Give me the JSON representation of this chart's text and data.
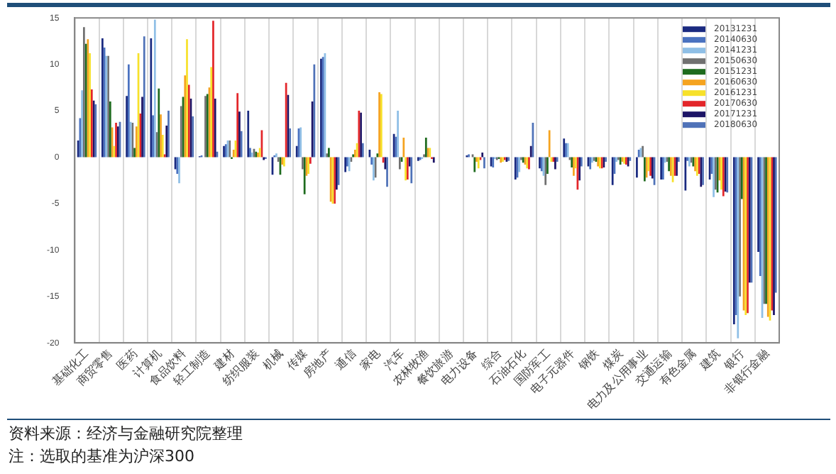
{
  "chart_data": {
    "type": "bar",
    "categories": [
      "基础化工",
      "商贸零售",
      "医药",
      "计算机",
      "食品饮料",
      "轻工制造",
      "建材",
      "纺织服装",
      "机械",
      "传媒",
      "房地产",
      "通信",
      "家电",
      "汽车",
      "农林牧渔",
      "餐饮旅游",
      "电力设备",
      "综合",
      "石油石化",
      "国防军工",
      "电子元器件",
      "钢铁",
      "煤炭",
      "电力及公用事业",
      "交通运输",
      "有色金属",
      "建筑",
      "银行",
      "非银行金融"
    ],
    "series": [
      {
        "name": "20131231",
        "color": "#1a2a80",
        "values": [
          1.8,
          12.8,
          6.6,
          12.8,
          -1.3,
          0.1,
          1.2,
          5,
          -1.9,
          1.2,
          10.6,
          -1.6,
          0.8,
          2.5,
          -0.4,
          0,
          0.2,
          -1,
          -2.4,
          -1.2,
          2,
          -1,
          -3,
          -2.2,
          -2.4,
          -3.6,
          -2.4,
          -18,
          -10.2
        ]
      },
      {
        "name": "20140630",
        "color": "#4a72c0",
        "values": [
          4.2,
          11.8,
          10,
          4.5,
          -1.8,
          0.2,
          1.4,
          1,
          0.2,
          3.1,
          10.8,
          -1,
          -0.8,
          2.2,
          -0.3,
          0,
          0.3,
          -1.1,
          -2.2,
          -1.5,
          1.5,
          -1.3,
          -1.8,
          0.8,
          -2.4,
          -0.4,
          -1.8,
          -17,
          -12.8
        ]
      },
      {
        "name": "20141231",
        "color": "#8fbfe6",
        "values": [
          7.2,
          10.9,
          3.8,
          14.8,
          -2.8,
          null,
          1.8,
          0.5,
          0.4,
          3.2,
          11.2,
          -1.5,
          -2.5,
          5,
          -0.2,
          0,
          null,
          -0.2,
          -1.6,
          -2,
          1.5,
          -0.6,
          -0.5,
          1,
          -0.6,
          -1,
          -4.3,
          -19.5,
          -17.3
        ]
      },
      {
        "name": "20150630",
        "color": "#707070",
        "values": [
          14,
          10.9,
          3.7,
          2.7,
          5.5,
          6.6,
          1.8,
          0.9,
          -0.5,
          -1.3,
          0.4,
          -0.5,
          -2.2,
          -1.3,
          0.3,
          0,
          0.3,
          -0.3,
          -0.3,
          -3,
          -0.3,
          -0.4,
          -0.3,
          1.2,
          -0.5,
          -0.6,
          -3.5,
          -15,
          -15.8
        ]
      },
      {
        "name": "20151231",
        "color": "#1e6b1e",
        "values": [
          12.2,
          6,
          1,
          7.4,
          6.5,
          6.8,
          -0.2,
          0.6,
          -1.9,
          -4,
          1,
          0.3,
          0.4,
          -0.5,
          2.1,
          0,
          -1.6,
          -0.2,
          -0.6,
          -1.8,
          -1.1,
          -0.5,
          -0.8,
          -2.6,
          -1.5,
          -1,
          -3.8,
          -4.5,
          -15.8
        ]
      },
      {
        "name": "20160630",
        "color": "#f5a31f",
        "values": [
          12.7,
          3.2,
          3.3,
          4.6,
          8.8,
          7.5,
          0.8,
          0.5,
          -0.8,
          -2,
          -4.8,
          0.8,
          7,
          2.1,
          1,
          0,
          -0.5,
          -0.6,
          -0.8,
          2.9,
          -2,
          -1,
          -0.5,
          -2.2,
          -2,
          -1.5,
          -2.5,
          -16.5,
          -17.2
        ]
      },
      {
        "name": "20161231",
        "color": "#f7e12a",
        "values": [
          11.2,
          1.2,
          11.2,
          2.4,
          12.7,
          9.7,
          1.8,
          1,
          -1,
          -1.8,
          -5,
          1.5,
          6.8,
          -2.5,
          1,
          0,
          -1.2,
          -0.5,
          -1.2,
          -0.5,
          -1.2,
          -1.2,
          -0.7,
          -1.5,
          -2.7,
          -2,
          -3.5,
          -17,
          -17.6
        ]
      },
      {
        "name": "20170630",
        "color": "#e3262a",
        "values": [
          7.3,
          3.7,
          4.7,
          0.3,
          7.8,
          14.7,
          6.9,
          2.9,
          8,
          -0.7,
          -5,
          5,
          -0.6,
          -2.4,
          -0.2,
          0,
          -0.3,
          -0.3,
          -1.3,
          -0.5,
          -3.5,
          -1.2,
          -0.8,
          -2,
          -2,
          -1.8,
          -4.2,
          -16.8,
          -16.5
        ]
      },
      {
        "name": "20171231",
        "color": "#1c1466",
        "values": [
          6.1,
          3.3,
          6.5,
          3.4,
          6.3,
          6.3,
          4.9,
          -0.3,
          6.7,
          6,
          -3.5,
          4.8,
          -1.3,
          -1,
          -0.6,
          0,
          0.5,
          -0.5,
          1.2,
          -1.3,
          -2.5,
          -1.1,
          -1,
          -2.3,
          -2,
          -3.2,
          -3.7,
          -13.5,
          -17
        ]
      },
      {
        "name": "20180630",
        "color": "#4f72b8",
        "values": [
          5.7,
          3.8,
          13,
          5,
          4.4,
          0.6,
          2.8,
          -0.2,
          3.1,
          10,
          -3,
          1.5,
          -3.2,
          -2.8,
          0,
          0,
          -1.2,
          -0.4,
          3.7,
          -0.5,
          -1,
          -0.5,
          -0.4,
          -3,
          -0.5,
          -3,
          -3.8,
          -13.5,
          -14.6
        ]
      }
    ],
    "ylim": [
      -20,
      15
    ],
    "yticks": [
      -20,
      -15,
      -10,
      -5,
      0,
      5,
      10,
      15
    ],
    "grid": "x",
    "legend": "top right",
    "annotations": [
      "资料来源：经济与金融研究院整理",
      "注：选取的基准为沪深300"
    ]
  }
}
